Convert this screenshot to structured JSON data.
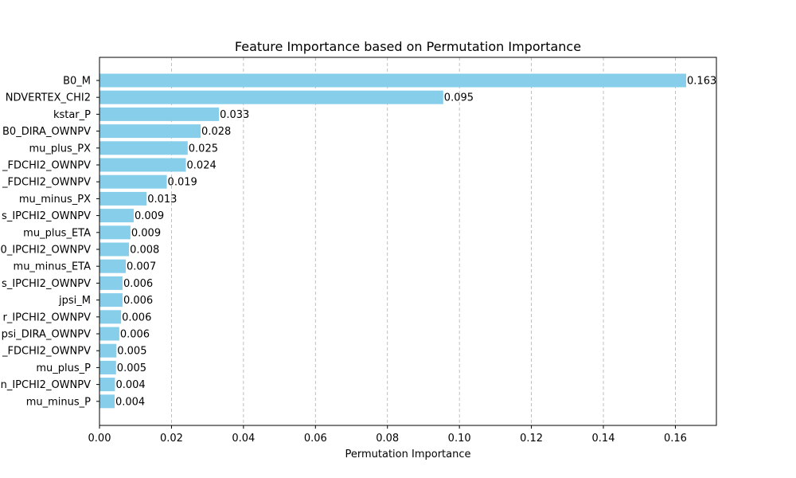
{
  "chart_data": {
    "type": "bar",
    "orientation": "horizontal",
    "title": "Feature Importance based on Permutation Importance",
    "xlabel": "Permutation Importance",
    "ylabel": "",
    "xlim": [
      0,
      0.1714
    ],
    "xticks": [
      0.0,
      0.02,
      0.04,
      0.06,
      0.08,
      0.1,
      0.12,
      0.14,
      0.16
    ],
    "xtick_labels": [
      "0.00",
      "0.02",
      "0.04",
      "0.06",
      "0.08",
      "0.10",
      "0.12",
      "0.14",
      "0.16"
    ],
    "grid": "x-dashed",
    "bar_color": "#87ceeb",
    "categories": [
      "B0_M",
      "NDVERTEX_CHI2",
      "kstar_P",
      "B0_DIRA_OWNPV",
      "mu_plus_PX",
      "_FDCHI2_OWNPV",
      "_FDCHI2_OWNPV",
      "mu_minus_PX",
      "s_IPCHI2_OWNPV",
      "mu_plus_ETA",
      "0_IPCHI2_OWNPV",
      "mu_minus_ETA",
      "s_IPCHI2_OWNPV",
      "jpsi_M",
      "r_IPCHI2_OWNPV",
      "psi_DIRA_OWNPV",
      "_FDCHI2_OWNPV",
      "mu_plus_P",
      "n_IPCHI2_OWNPV",
      "mu_minus_P"
    ],
    "values": [
      0.163,
      0.0955,
      0.0332,
      0.0281,
      0.0245,
      0.024,
      0.0187,
      0.0131,
      0.0095,
      0.0086,
      0.0082,
      0.0073,
      0.0064,
      0.0064,
      0.006,
      0.0055,
      0.0047,
      0.0046,
      0.0043,
      0.0042
    ],
    "value_labels": [
      "0.163",
      "0.095",
      "0.033",
      "0.028",
      "0.025",
      "0.024",
      "0.019",
      "0.013",
      "0.009",
      "0.009",
      "0.008",
      "0.007",
      "0.006",
      "0.006",
      "0.006",
      "0.006",
      "0.005",
      "0.005",
      "0.004",
      "0.004"
    ]
  }
}
